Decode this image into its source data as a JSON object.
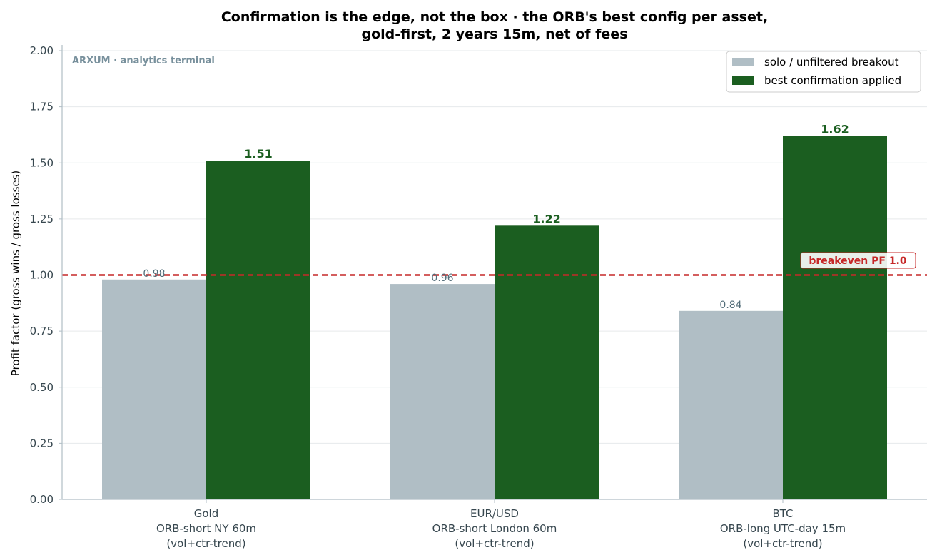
{
  "chart_data": {
    "type": "bar",
    "title": [
      "Confirmation is the edge, not the box · the ORB's best config per asset,",
      "gold-first, 2 years 15m, net of fees"
    ],
    "watermark": "ARXUM · analytics terminal",
    "ylabel": "Profit factor (gross wins / gross losses)",
    "xlabel": "",
    "ylim": [
      0,
      2.0
    ],
    "yticks": [
      "0.00",
      "0.25",
      "0.50",
      "0.75",
      "1.00",
      "1.25",
      "1.50",
      "1.75",
      "2.00"
    ],
    "grid": true,
    "legend_position": "top-right",
    "categories": [
      [
        "Gold",
        "ORB-short NY 60m",
        "(vol+ctr-trend)"
      ],
      [
        "EUR/USD",
        "ORB-short London 60m",
        "(vol+ctr-trend)"
      ],
      [
        "BTC",
        "ORB-long UTC-day 15m",
        "(vol+ctr-trend)"
      ]
    ],
    "series": [
      {
        "name": "solo / unfiltered breakout",
        "color": "#b0bec5",
        "values": [
          0.98,
          0.96,
          0.84
        ],
        "labels": [
          "0.98",
          "0.96",
          "0.84"
        ]
      },
      {
        "name": "best confirmation applied",
        "color": "#1b5e20",
        "values": [
          1.51,
          1.22,
          1.62
        ],
        "labels": [
          "1.51",
          "1.22",
          "1.62"
        ]
      }
    ],
    "reference_line": {
      "value": 1.0,
      "label": "breakeven PF 1.0",
      "color": "#c62828"
    }
  }
}
